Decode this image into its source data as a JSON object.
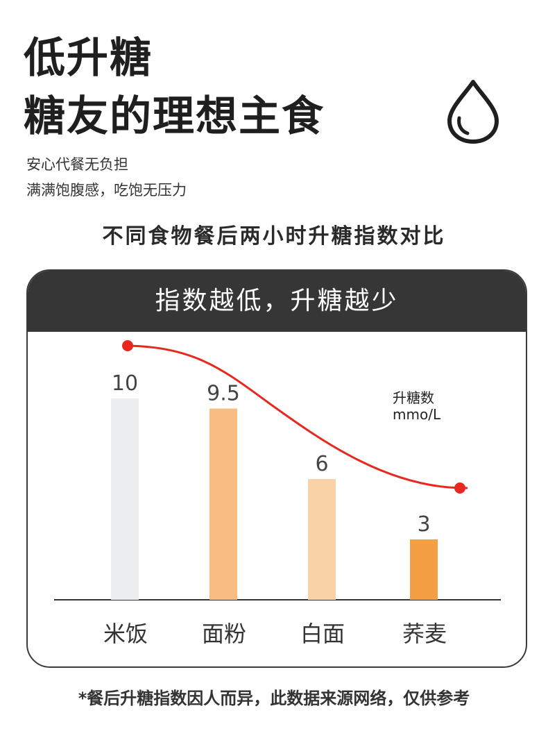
{
  "headline": {
    "line1": "低升糖",
    "line2": "糖友的理想主食"
  },
  "subtitle": {
    "line1": "安心代餐无负担",
    "line2": "满满饱腹感，吃饱无压力"
  },
  "section_heading": "不同食物餐后两小时升糖指数对比",
  "card_header": "指数越低，升糖越少",
  "footnote": "*餐后升糖指数因人而异，此数据来源网络，仅供参考",
  "chart_data": {
    "type": "bar",
    "categories": [
      "米饭",
      "面粉",
      "白面",
      "荞麦"
    ],
    "values": [
      10,
      9.5,
      6,
      3
    ],
    "value_labels": [
      "10",
      "9.5",
      "6",
      "3"
    ],
    "unit_label_line1": "升糖数",
    "unit_label_line2": "mmo/L",
    "bar_colors": [
      "#ecedee",
      "#f7bd83",
      "#f9d3a7",
      "#f39f44"
    ],
    "trend_color": "#e8281e",
    "ylim": [
      0,
      10.5
    ],
    "grid": false
  }
}
